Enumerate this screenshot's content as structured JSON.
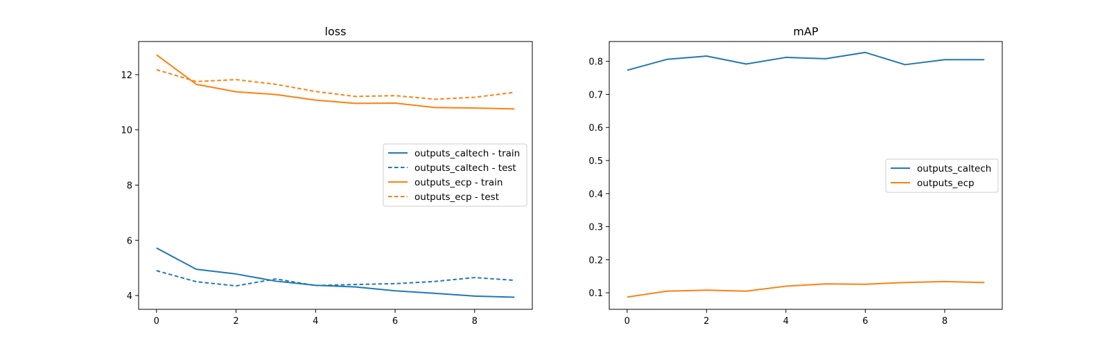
{
  "chart_data": [
    {
      "type": "line",
      "title": "loss",
      "xlabel": "",
      "ylabel": "",
      "x": [
        0,
        1,
        2,
        3,
        4,
        5,
        6,
        7,
        8,
        9
      ],
      "xticks": [
        0,
        2,
        4,
        6,
        8
      ],
      "yticks": [
        4,
        6,
        8,
        10,
        12
      ],
      "xlim": [
        -0.45,
        9.45
      ],
      "ylim": [
        3.5,
        13.2
      ],
      "grid": false,
      "legend": "center-right",
      "series": [
        {
          "name": "outputs_caltech - train",
          "color": "#1f77b4",
          "dash": "solid",
          "values": [
            5.72,
            4.95,
            4.78,
            4.52,
            4.37,
            4.31,
            4.17,
            4.08,
            3.98,
            3.94
          ]
        },
        {
          "name": "outputs_caltech - test",
          "color": "#1f77b4",
          "dash": "dashed",
          "values": [
            4.9,
            4.5,
            4.35,
            4.6,
            4.36,
            4.4,
            4.43,
            4.51,
            4.65,
            4.55
          ]
        },
        {
          "name": "outputs_ecp - train",
          "color": "#ff7f0e",
          "dash": "solid",
          "values": [
            12.72,
            11.65,
            11.38,
            11.28,
            11.08,
            10.96,
            10.97,
            10.81,
            10.79,
            10.76
          ]
        },
        {
          "name": "outputs_ecp - test",
          "color": "#ff7f0e",
          "dash": "dashed",
          "values": [
            12.18,
            11.75,
            11.82,
            11.65,
            11.39,
            11.21,
            11.24,
            11.11,
            11.18,
            11.36
          ]
        }
      ]
    },
    {
      "type": "line",
      "title": "mAP",
      "xlabel": "",
      "ylabel": "",
      "x": [
        0,
        1,
        2,
        3,
        4,
        5,
        6,
        7,
        8,
        9
      ],
      "xticks": [
        0,
        2,
        4,
        6,
        8
      ],
      "yticks": [
        0.1,
        0.2,
        0.3,
        0.4,
        0.5,
        0.6,
        0.7,
        0.8
      ],
      "xlim": [
        -0.45,
        9.45
      ],
      "ylim": [
        0.05,
        0.86
      ],
      "grid": false,
      "legend": "center-right",
      "series": [
        {
          "name": "outputs_caltech",
          "color": "#1f77b4",
          "dash": "solid",
          "values": [
            0.773,
            0.806,
            0.816,
            0.792,
            0.812,
            0.808,
            0.827,
            0.79,
            0.805,
            0.805
          ]
        },
        {
          "name": "outputs_ecp",
          "color": "#ff7f0e",
          "dash": "solid",
          "values": [
            0.087,
            0.105,
            0.108,
            0.105,
            0.12,
            0.127,
            0.126,
            0.131,
            0.134,
            0.131
          ]
        }
      ]
    }
  ]
}
